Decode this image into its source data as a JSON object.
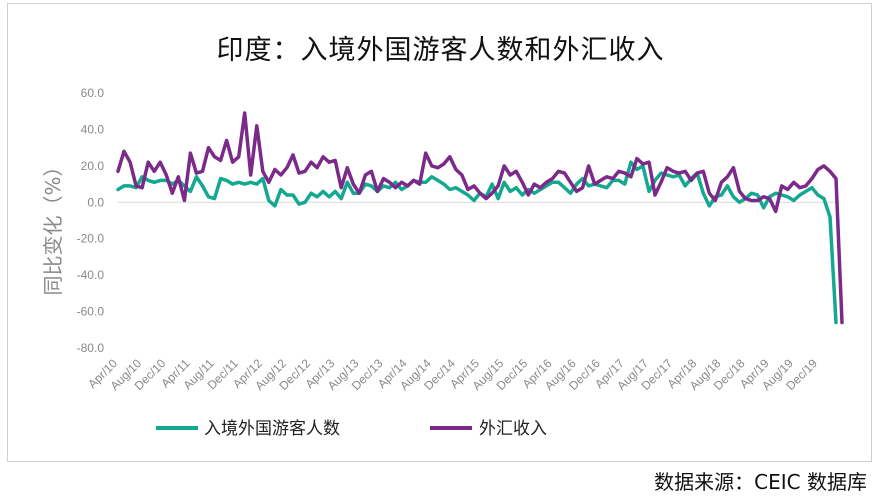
{
  "chart_data": {
    "type": "line",
    "title": "印度：入境外国游客人数和外汇收入",
    "ylabel": "同比变化（%）",
    "ylim": [
      -80,
      60
    ],
    "yticks": [
      "60.0",
      "40.0",
      "20.0",
      "0.0",
      "-20.0",
      "-40.0",
      "-60.0",
      "-80.0"
    ],
    "ytick_values": [
      60,
      40,
      20,
      0,
      -20,
      -40,
      -60,
      -80
    ],
    "x_start": "2010-04",
    "x_ticks": [
      "Apr/10",
      "Aug/10",
      "Dec/10",
      "Apr/11",
      "Aug/11",
      "Dec/11",
      "Apr/12",
      "Aug/12",
      "Dec/12",
      "Apr/13",
      "Aug/13",
      "Dec/13",
      "Apr/14",
      "Aug/14",
      "Dec/14",
      "Apr/15",
      "Aug/15",
      "Dec/15",
      "Apr/16",
      "Aug/16",
      "Dec/16",
      "Apr/17",
      "Aug/17",
      "Dec/17",
      "Apr/18",
      "Aug/18",
      "Dec/18",
      "Apr/19",
      "Aug/19",
      "Dec/19"
    ],
    "legend_position": "bottom",
    "series": [
      {
        "name": "入境外国游客人数",
        "color": "#14a890",
        "values": [
          7,
          9,
          9,
          8,
          14,
          12,
          11,
          12,
          12,
          10,
          12,
          9,
          6,
          14,
          9,
          3,
          2,
          13,
          12,
          10,
          11,
          10,
          11,
          10,
          13,
          1,
          -2,
          7,
          4,
          4,
          -1,
          0,
          5,
          3,
          6,
          3,
          6,
          2,
          11,
          5,
          5,
          10,
          9,
          6,
          9,
          8,
          11,
          7,
          9,
          12,
          11,
          11,
          14,
          12,
          10,
          7,
          8,
          6,
          4,
          1,
          5,
          3,
          10,
          2,
          11,
          6,
          8,
          4,
          7,
          5,
          7,
          9,
          11,
          11,
          8,
          5,
          10,
          13,
          9,
          10,
          9,
          8,
          12,
          12,
          10,
          22,
          18,
          20,
          6,
          12,
          16,
          15,
          14,
          15,
          9,
          13,
          16,
          5,
          -2,
          3,
          4,
          9,
          3,
          0,
          2,
          5,
          4,
          -3,
          3,
          5,
          4,
          3,
          1,
          4,
          6,
          8,
          4,
          2,
          -8,
          -66
        ]
      },
      {
        "name": "外汇收入",
        "color": "#7b2a8a",
        "values": [
          17,
          28,
          22,
          9,
          8,
          22,
          17,
          22,
          15,
          5,
          14,
          1,
          27,
          16,
          17,
          30,
          25,
          23,
          34,
          22,
          25,
          49,
          15,
          42,
          17,
          11,
          18,
          15,
          19,
          26,
          16,
          17,
          22,
          19,
          25,
          22,
          23,
          8,
          19,
          10,
          5,
          15,
          17,
          6,
          13,
          11,
          8,
          11,
          9,
          12,
          10,
          27,
          20,
          19,
          21,
          25,
          18,
          15,
          7,
          9,
          5,
          2,
          5,
          9,
          20,
          15,
          17,
          11,
          4,
          10,
          8,
          11,
          13,
          17,
          16,
          11,
          6,
          8,
          20,
          10,
          12,
          14,
          13,
          17,
          16,
          14,
          24,
          21,
          22,
          4,
          11,
          19,
          17,
          16,
          17,
          12,
          16,
          17,
          5,
          1,
          11,
          14,
          19,
          6,
          2,
          1,
          1,
          3,
          2,
          -5,
          9,
          7,
          11,
          8,
          9,
          13,
          18,
          20,
          17,
          13,
          -66
        ]
      }
    ]
  }
}
